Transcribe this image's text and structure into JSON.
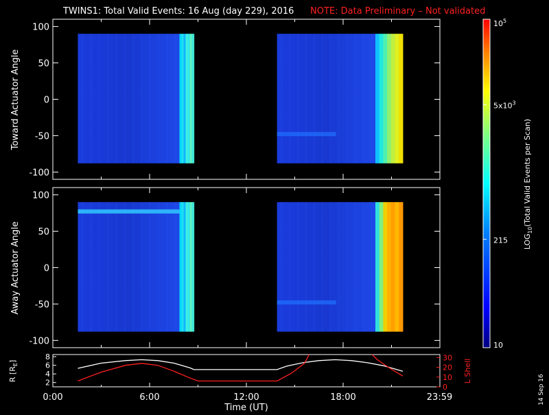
{
  "title": {
    "main": "TWINS1: Total Valid Events: 16 Aug (day 229), 2016",
    "note": "NOTE: Data Preliminary – Not validated",
    "note_color": "#ff2020"
  },
  "stamp": "14 Sep 16",
  "chart_data": [
    {
      "type": "heatmap",
      "panel": "toward",
      "ylabel": "Toward Actuator Angle",
      "ylim": [
        -110,
        110
      ],
      "yticks": [
        "100",
        "50",
        "0",
        "-50",
        "-100"
      ],
      "yticks_values": [
        100,
        50,
        0,
        -50,
        -100
      ],
      "xlim": [
        0,
        24
      ],
      "grid": false,
      "blocks": [
        {
          "t_start": 1.55,
          "t_end": 8.75,
          "angle_range": [
            -88,
            90
          ],
          "background_level": "low",
          "bright_band_start": 7.85
        },
        {
          "t_start": 13.9,
          "t_end": 21.7,
          "angle_range": [
            -88,
            90
          ],
          "background_level": "low",
          "bright_band_start": 20.0
        }
      ]
    },
    {
      "type": "heatmap",
      "panel": "away",
      "ylabel": "Away Actuator Angle",
      "ylim": [
        -110,
        110
      ],
      "yticks": [
        "100",
        "50",
        "0",
        "-50",
        "-100"
      ],
      "yticks_values": [
        100,
        50,
        0,
        -50,
        -100
      ],
      "xlim": [
        0,
        24
      ],
      "grid": false,
      "blocks": [
        {
          "t_start": 1.55,
          "t_end": 8.75,
          "angle_range": [
            -88,
            90
          ],
          "background_level": "low",
          "bright_band_start": 7.85
        },
        {
          "t_start": 13.9,
          "t_end": 21.7,
          "angle_range": [
            -88,
            90
          ],
          "background_level": "low",
          "bright_band_start": 20.0
        }
      ]
    },
    {
      "type": "line",
      "panel": "orbit",
      "ylabel": "R [R",
      "ylabel_sub": "E",
      "ylabel_close": "]",
      "ylabel_right": "L Shell",
      "ylabel_right_color": "#ff2020",
      "xlabel": "Time (UT)",
      "xlim": [
        0,
        24
      ],
      "xticks": [
        "0:00",
        "6:00",
        "12:00",
        "18:00",
        "23:59"
      ],
      "xticks_values": [
        0,
        6,
        12,
        18,
        23.98
      ],
      "ylim": [
        1,
        8.5
      ],
      "yticks": [
        "8",
        "6",
        "4",
        "2"
      ],
      "yticks_values": [
        8,
        6,
        4,
        2
      ],
      "y2lim": [
        0,
        33
      ],
      "y2ticks": [
        "30",
        "20",
        "10",
        "0"
      ],
      "y2ticks_values": [
        30,
        20,
        10,
        0
      ],
      "series": [
        {
          "color": "#ffffff",
          "x": [
            1.55,
            3,
            4.5,
            5.5,
            6.5,
            7.5,
            8.5,
            8.75,
            13.9,
            14.5,
            15.5,
            16.5,
            17.5,
            18.5,
            19.5,
            20.5,
            21.7
          ],
          "y": [
            5.3,
            6.5,
            7.1,
            7.3,
            7.1,
            6.5,
            5.4,
            5.0,
            5.0,
            5.8,
            6.6,
            7.1,
            7.3,
            7.1,
            6.6,
            5.9,
            4.6
          ]
        },
        {
          "color": "#ff2020",
          "axis": "right",
          "x": [
            1.55,
            3,
            4.5,
            5.5,
            6.5,
            7.5,
            8.5,
            9.0,
            13.9,
            14.8,
            15.6,
            15.9
          ],
          "y": [
            6,
            15,
            22,
            24,
            22,
            16,
            9,
            6,
            6,
            14,
            24,
            33
          ]
        },
        {
          "color": "#ff2020",
          "axis": "right",
          "x": [
            19.8,
            20.1,
            20.8,
            21.7
          ],
          "y": [
            33,
            28,
            20,
            11
          ]
        }
      ]
    }
  ],
  "colorbar": {
    "label": "LOG",
    "label_sub": "10",
    "label_rest": "(Total Valid Events per Scan)",
    "ticks": [
      {
        "label_base": "10",
        "label_sup": "5",
        "frac": 1.0
      },
      {
        "label_base": "5x10",
        "label_sup": "3",
        "frac": 0.74
      },
      {
        "label_base": "215",
        "label_sup": "",
        "frac": 0.33
      },
      {
        "label_base": "10",
        "label_sup": "",
        "frac": 0.0
      }
    ]
  }
}
